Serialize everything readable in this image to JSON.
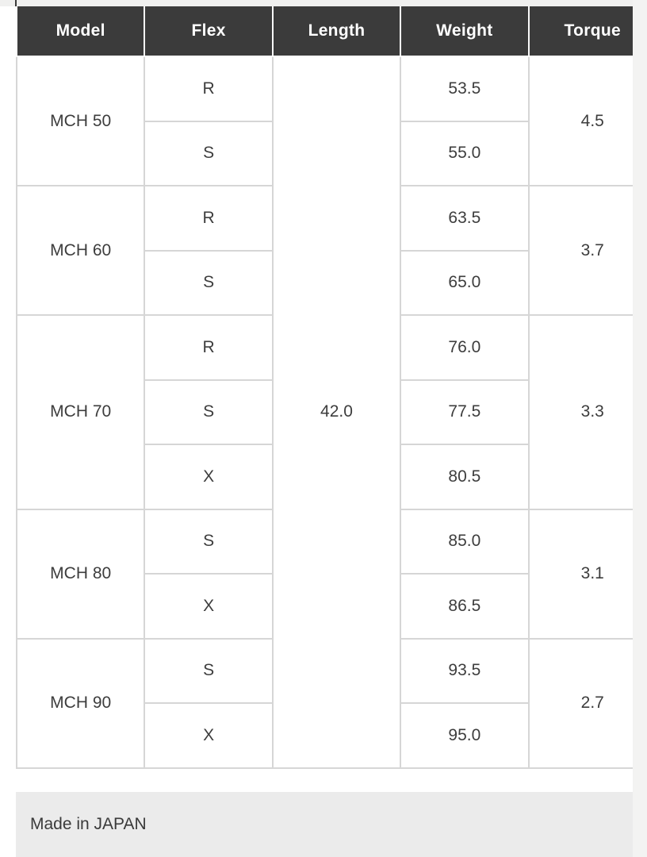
{
  "table": {
    "columns": [
      "Model",
      "Flex",
      "Length",
      "Weight",
      "Torque"
    ],
    "length_value": "42.0",
    "groups": [
      {
        "model": "MCH 50",
        "torque": "4.5",
        "rows": [
          {
            "flex": "R",
            "weight": "53.5"
          },
          {
            "flex": "S",
            "weight": "55.0"
          }
        ]
      },
      {
        "model": "MCH 60",
        "torque": "3.7",
        "rows": [
          {
            "flex": "R",
            "weight": "63.5"
          },
          {
            "flex": "S",
            "weight": "65.0"
          }
        ]
      },
      {
        "model": "MCH 70",
        "torque": "3.3",
        "rows": [
          {
            "flex": "R",
            "weight": "76.0"
          },
          {
            "flex": "S",
            "weight": "77.5"
          },
          {
            "flex": "X",
            "weight": "80.5"
          }
        ]
      },
      {
        "model": "MCH 80",
        "torque": "3.1",
        "rows": [
          {
            "flex": "S",
            "weight": "85.0"
          },
          {
            "flex": "X",
            "weight": "86.5"
          }
        ]
      },
      {
        "model": "MCH 90",
        "torque": "2.7",
        "rows": [
          {
            "flex": "S",
            "weight": "93.5"
          },
          {
            "flex": "X",
            "weight": "95.0"
          }
        ]
      }
    ]
  },
  "footer": {
    "made_in_label": "Made in JAPAN"
  },
  "colors": {
    "header_bg": "#3b3b3b",
    "header_text": "#ffffff",
    "body_text": "#3d3d3d",
    "body_border": "#d6d6d6",
    "header_border": "#fafafa",
    "footer_bg": "#ebebeb",
    "page_bg": "#ffffff",
    "side_strip_bg": "#f3f3f2"
  }
}
